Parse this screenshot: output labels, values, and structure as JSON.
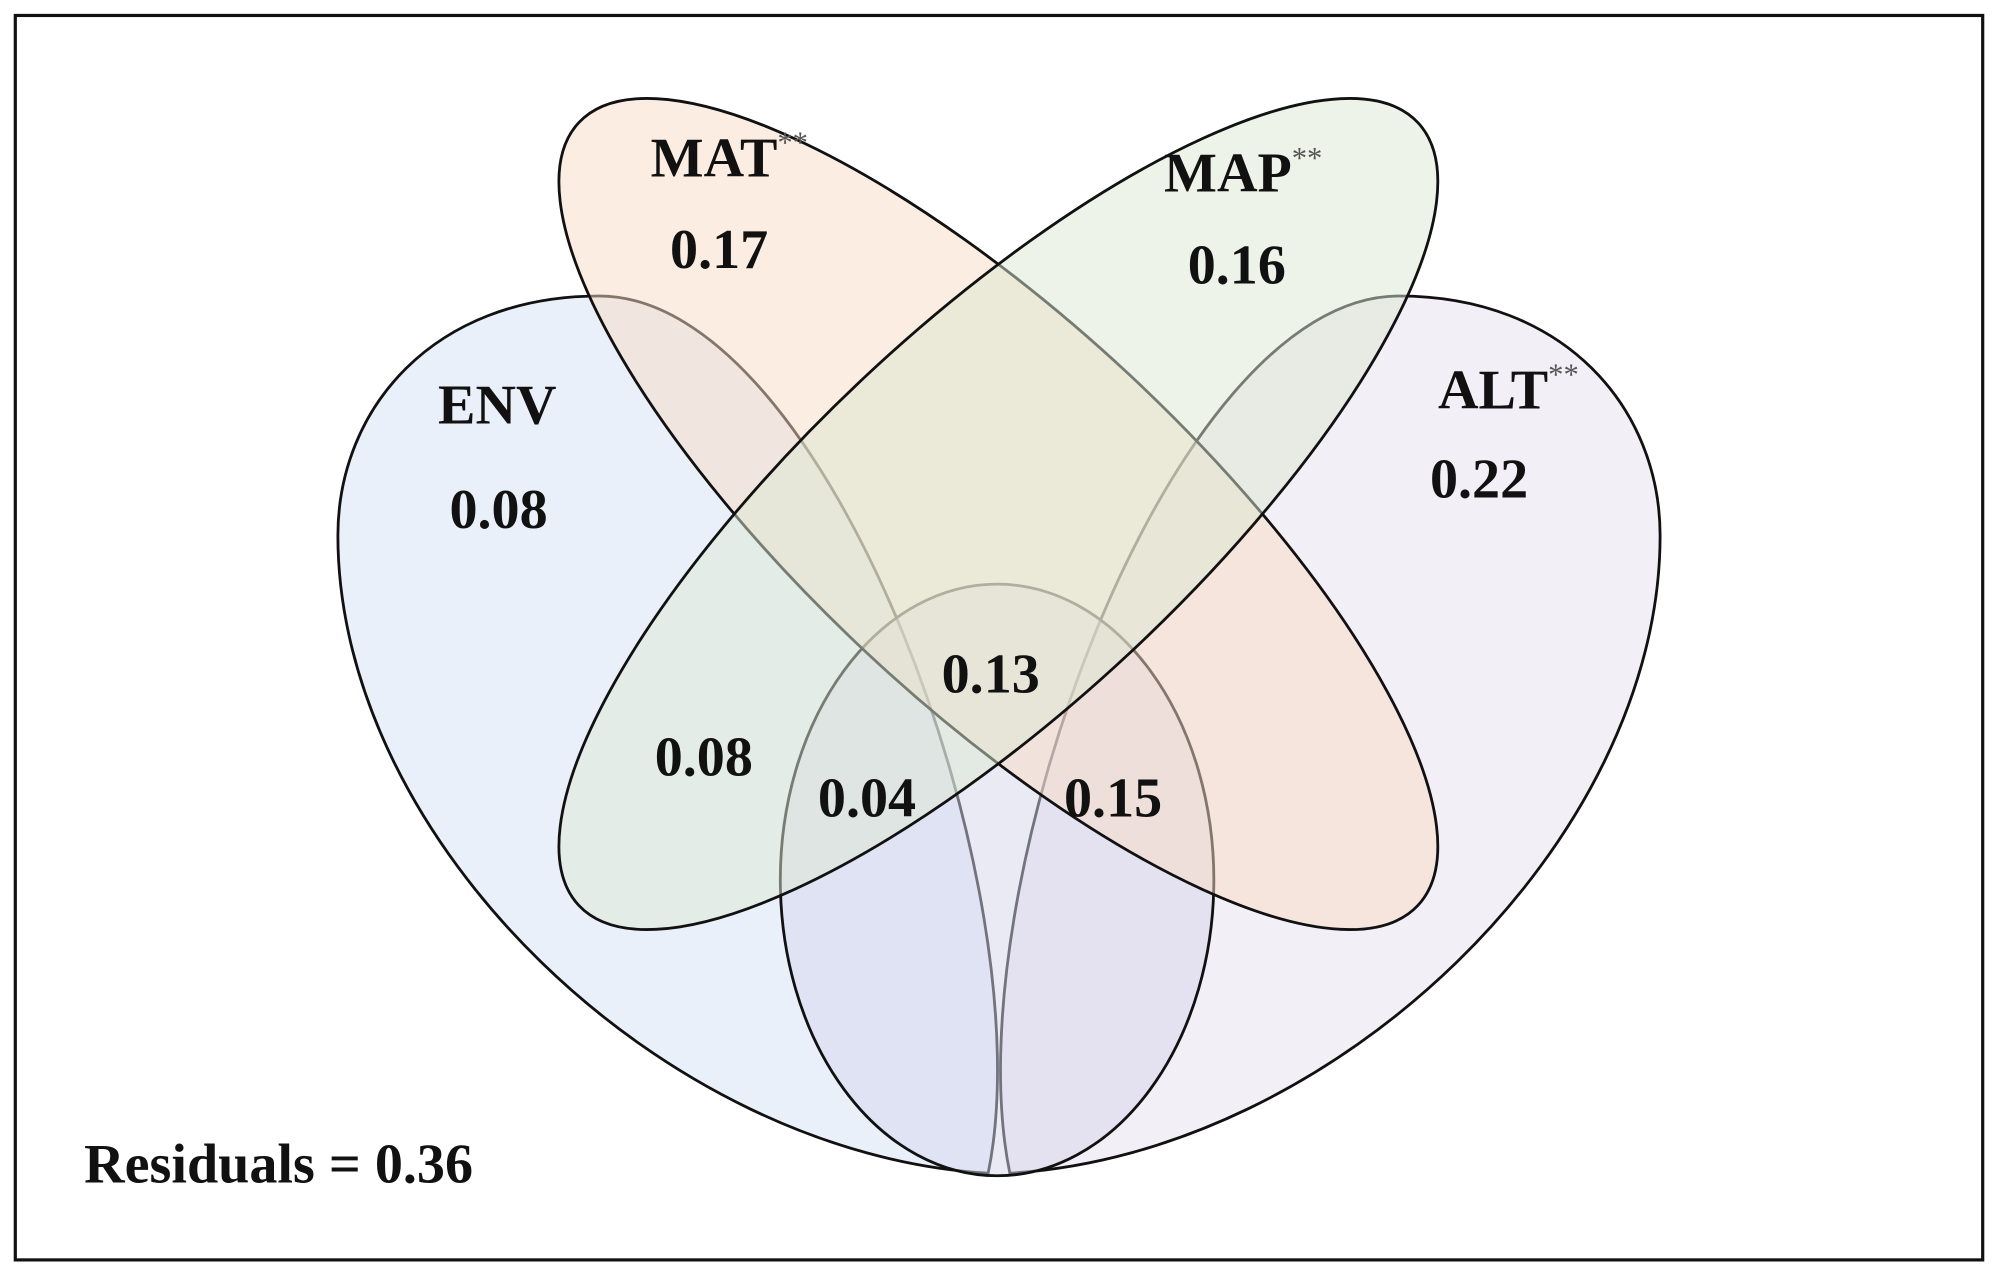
{
  "sets": [
    {
      "name": "MAT",
      "mark": "**",
      "value": 0.17
    },
    {
      "name": "MAP",
      "mark": "**",
      "value": 0.16
    },
    {
      "name": "ENV",
      "value": 0.08
    },
    {
      "name": "ALT",
      "mark": "**",
      "value": 0.22
    }
  ],
  "regions": [
    0.13,
    0.08,
    0.04,
    0.15
  ],
  "residuals": "Residuals = 0.36"
}
